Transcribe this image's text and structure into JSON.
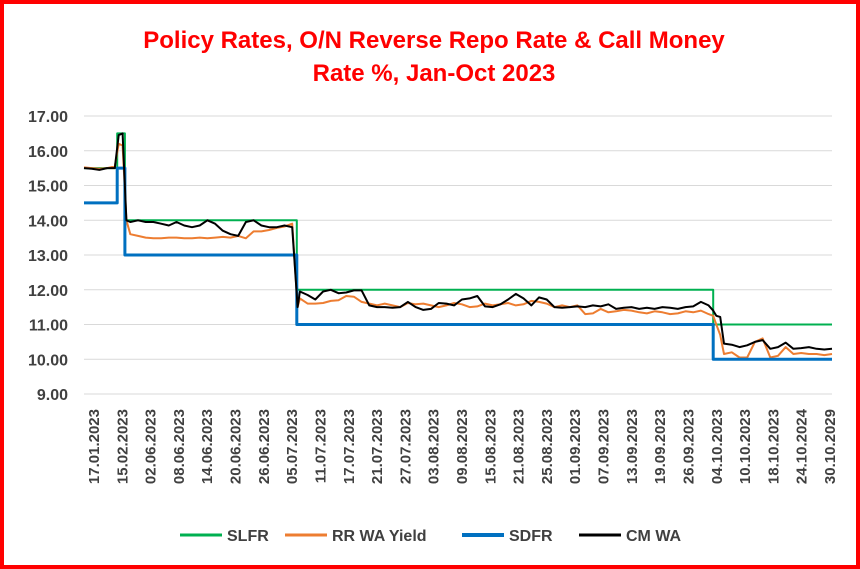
{
  "chart_data": {
    "type": "line",
    "title_line1": "Policy Rates, O/N Reverse Repo Rate & Call Money",
    "title_line2": "Rate %, Jan-Oct 2023",
    "xlabel": "",
    "ylabel": "",
    "ylim": [
      9,
      17
    ],
    "yticks": [
      "9.00",
      "10.00",
      "11.00",
      "12.00",
      "13.00",
      "14.00",
      "15.00",
      "16.00",
      "17.00"
    ],
    "grid": "horizontal",
    "legend_position": "bottom",
    "tick_labels": [
      "17.01.2023",
      "15.02.2023",
      "02.06.2023",
      "08.06.2023",
      "14.06.2023",
      "20.06.2023",
      "26.06.2023",
      "05.07.2023",
      "11.07.2023",
      "17.07.2023",
      "21.07.2023",
      "27.07.2023",
      "03.08.2023",
      "09.08.2023",
      "15.08.2023",
      "21.08.2023",
      "25.08.2023",
      "01.09.2023",
      "07.09.2023",
      "13.09.2023",
      "19.09.2023",
      "26.09.2023",
      "04.10.2023",
      "10.10.2023",
      "18.10.2023",
      "24.10.2024",
      "30.10.2029"
    ],
    "series": [
      {
        "name": "SLFR",
        "color": "#00b050",
        "width": 2,
        "x": [
          0,
          4.3,
          4.3,
          5.3,
          5.3,
          27.6,
          27.6,
          81.6,
          81.6,
          97
        ],
        "values": [
          15.5,
          15.5,
          16.5,
          16.5,
          14,
          14,
          12,
          12,
          11,
          11
        ]
      },
      {
        "name": "RR WA Yield",
        "color": "#ed7d31",
        "width": 2,
        "x": [
          0,
          1,
          2,
          3,
          4,
          4.5,
          5,
          5.5,
          6,
          7,
          8,
          9,
          10,
          11,
          12,
          13,
          14,
          15,
          16,
          17,
          18,
          19,
          20,
          21,
          22,
          23,
          24,
          25,
          26,
          27,
          27.7,
          28,
          29,
          30,
          31,
          32,
          33,
          34,
          35,
          36,
          37,
          38,
          39,
          40,
          41,
          42,
          43,
          44,
          45,
          46,
          47,
          48,
          49,
          50,
          51,
          52,
          53,
          54,
          55,
          56,
          57,
          58,
          59,
          60,
          61,
          62,
          63,
          64,
          65,
          66,
          67,
          68,
          69,
          70,
          71,
          72,
          73,
          74,
          75,
          76,
          77,
          78,
          79,
          80,
          81,
          81.6,
          82,
          82.5,
          83,
          84,
          85,
          86,
          87,
          88,
          89,
          90,
          91,
          92,
          93,
          94,
          95,
          96,
          97
        ],
        "values": [
          15.52,
          15.5,
          15.48,
          15.5,
          15.55,
          16.2,
          16.15,
          14.0,
          13.6,
          13.55,
          13.5,
          13.48,
          13.48,
          13.5,
          13.5,
          13.48,
          13.48,
          13.5,
          13.48,
          13.5,
          13.52,
          13.5,
          13.55,
          13.48,
          13.68,
          13.68,
          13.72,
          13.78,
          13.82,
          13.9,
          11.5,
          11.75,
          11.6,
          11.6,
          11.62,
          11.68,
          11.7,
          11.82,
          11.8,
          11.65,
          11.6,
          11.55,
          11.6,
          11.55,
          11.5,
          11.62,
          11.58,
          11.6,
          11.55,
          11.5,
          11.55,
          11.62,
          11.58,
          11.5,
          11.52,
          11.6,
          11.55,
          11.58,
          11.62,
          11.55,
          11.58,
          11.68,
          11.65,
          11.6,
          11.5,
          11.55,
          11.5,
          11.55,
          11.3,
          11.32,
          11.45,
          11.35,
          11.38,
          11.42,
          11.4,
          11.35,
          11.32,
          11.38,
          11.35,
          11.3,
          11.32,
          11.38,
          11.35,
          11.4,
          11.3,
          11.25,
          11.0,
          10.7,
          10.15,
          10.2,
          10.05,
          10.05,
          10.5,
          10.6,
          10.05,
          10.1,
          10.35,
          10.15,
          10.18,
          10.15,
          10.15,
          10.12,
          10.15
        ]
      },
      {
        "name": "SDFR",
        "color": "#0070c0",
        "width": 3,
        "x": [
          0,
          4.3,
          4.3,
          5.3,
          5.3,
          27.6,
          27.6,
          81.6,
          81.6,
          97
        ],
        "values": [
          14.5,
          14.5,
          15.5,
          15.5,
          13,
          13,
          11,
          11,
          10,
          10
        ]
      },
      {
        "name": "CM WA",
        "color": "#000000",
        "width": 2,
        "x": [
          0,
          1,
          2,
          3,
          4,
          4.5,
          5,
          5.5,
          6,
          7,
          8,
          9,
          10,
          11,
          12,
          13,
          14,
          15,
          16,
          17,
          18,
          19,
          20,
          21,
          22,
          23,
          24,
          25,
          26,
          27,
          27.7,
          28,
          29,
          30,
          31,
          32,
          33,
          34,
          35,
          36,
          37,
          38,
          39,
          40,
          41,
          42,
          43,
          44,
          45,
          46,
          47,
          48,
          49,
          50,
          51,
          52,
          53,
          54,
          55,
          56,
          57,
          58,
          59,
          60,
          61,
          62,
          63,
          64,
          65,
          66,
          67,
          68,
          69,
          70,
          71,
          72,
          73,
          74,
          75,
          76,
          77,
          78,
          79,
          80,
          81,
          81.6,
          82,
          82.5,
          83,
          84,
          85,
          86,
          87,
          88,
          89,
          90,
          91,
          92,
          93,
          94,
          95,
          96,
          97
        ],
        "values": [
          15.5,
          15.48,
          15.45,
          15.5,
          15.5,
          16.45,
          16.5,
          14.0,
          13.95,
          14.0,
          13.95,
          13.95,
          13.9,
          13.85,
          13.95,
          13.85,
          13.8,
          13.85,
          14.0,
          13.9,
          13.7,
          13.6,
          13.55,
          13.95,
          14.0,
          13.85,
          13.8,
          13.8,
          13.85,
          13.8,
          11.5,
          11.95,
          11.85,
          11.72,
          11.95,
          12.0,
          11.9,
          11.92,
          11.98,
          11.98,
          11.55,
          11.5,
          11.5,
          11.48,
          11.5,
          11.65,
          11.5,
          11.42,
          11.45,
          11.62,
          11.6,
          11.55,
          11.72,
          11.75,
          11.82,
          11.52,
          11.5,
          11.58,
          11.72,
          11.88,
          11.75,
          11.55,
          11.78,
          11.72,
          11.5,
          11.48,
          11.5,
          11.52,
          11.5,
          11.55,
          11.52,
          11.58,
          11.45,
          11.48,
          11.5,
          11.45,
          11.48,
          11.45,
          11.5,
          11.48,
          11.45,
          11.5,
          11.52,
          11.65,
          11.55,
          11.4,
          11.25,
          11.22,
          10.45,
          10.42,
          10.35,
          10.4,
          10.5,
          10.55,
          10.3,
          10.35,
          10.48,
          10.3,
          10.32,
          10.35,
          10.3,
          10.28,
          10.3
        ]
      }
    ]
  }
}
